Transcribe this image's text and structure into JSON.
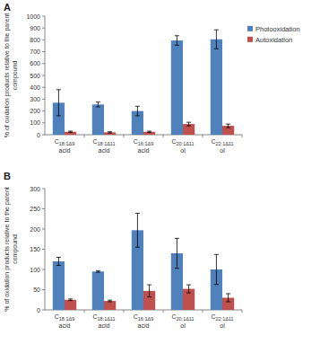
{
  "chart_data": [
    {
      "type": "bar",
      "title": "A",
      "ylabel": "% of oxidation products relative to the parent compound",
      "categories": [
        "C18:1Δ9 acid",
        "C18:1Δ11 acid",
        "C16:1Δ9 acid",
        "C20:1Δ11 ol",
        "C22:1Δ11 ol"
      ],
      "series": [
        {
          "name": "Photooxidation",
          "color": "#4f81bd",
          "values": [
            270,
            255,
            200,
            795,
            805
          ],
          "errors": [
            110,
            20,
            40,
            40,
            80
          ]
        },
        {
          "name": "Autoxidation",
          "color": "#c0504d",
          "values": [
            25,
            20,
            25,
            90,
            75
          ],
          "errors": [
            5,
            5,
            5,
            15,
            15
          ]
        }
      ],
      "ylim": [
        0,
        1000
      ],
      "yticks": [
        0,
        100,
        200,
        300,
        400,
        500,
        600,
        700,
        800,
        900,
        1000
      ],
      "grid": false,
      "legend": "right"
    },
    {
      "type": "bar",
      "title": "B",
      "ylabel": "% of oxidation products relative to the parent compound",
      "categories": [
        "C18:1Δ9 acid",
        "C18:1Δ11 acid",
        "C16:1Δ9 acid",
        "C20:1Δ11 ol",
        "C22:1Δ11 ol"
      ],
      "series": [
        {
          "color": "#4f81bd",
          "values": [
            120,
            95,
            197,
            140,
            100
          ],
          "errors": [
            10,
            2,
            42,
            37,
            37
          ]
        },
        {
          "color": "#c0504d",
          "values": [
            25,
            22,
            47,
            52,
            30
          ],
          "errors": [
            2,
            2,
            15,
            10,
            10
          ]
        }
      ],
      "ylim": [
        0,
        300
      ],
      "yticks": [
        0,
        50,
        100,
        150,
        200,
        250,
        300
      ],
      "grid": false
    }
  ]
}
